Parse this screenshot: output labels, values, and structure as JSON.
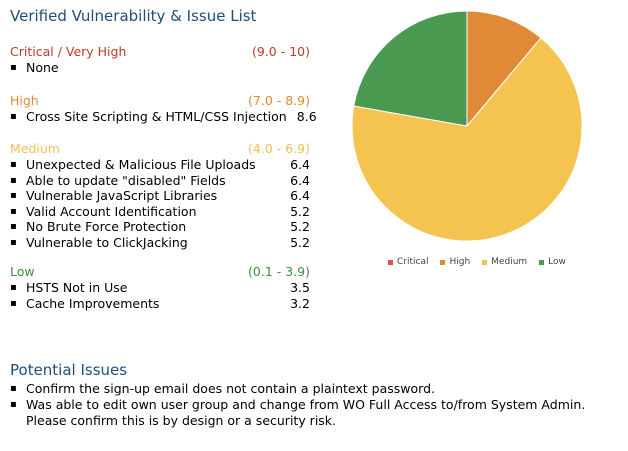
{
  "title": "Verified Vulnerability & Issue List",
  "sections": [
    {
      "label": "Critical / Very High",
      "range": "(9.0 - 10)",
      "color": "#c0392b",
      "items": [
        {
          "name": "None",
          "score": ""
        }
      ]
    },
    {
      "label": "High",
      "range": "(7.0 - 8.9)",
      "color": "#e08a2e",
      "items": [
        {
          "name": "Cross Site Scripting & HTML/CSS Injection",
          "score": "8.6"
        }
      ]
    },
    {
      "label": "Medium",
      "range": "(4.0 - 6.9)",
      "color": "#f2c04f",
      "items": [
        {
          "name": "Unexpected & Malicious File Uploads",
          "score": "6.4"
        },
        {
          "name": "Able to update \"disabled\" Fields",
          "score": "6.4"
        },
        {
          "name": "Vulnerable JavaScript Libraries",
          "score": "6.4"
        },
        {
          "name": "Valid Account Identification",
          "score": "5.2"
        },
        {
          "name": "No Brute Force Protection",
          "score": "5.2"
        },
        {
          "name": "Vulnerable to ClickJacking",
          "score": "5.2"
        }
      ]
    },
    {
      "label": "Low",
      "range": "(0.1 - 3.9)",
      "color": "#3f8f3f",
      "items": [
        {
          "name": "HSTS Not in Use",
          "score": "3.5"
        },
        {
          "name": "Cache Improvements",
          "score": "3.2"
        }
      ]
    }
  ],
  "potential": {
    "title": "Potential Issues",
    "items": [
      "Confirm the sign-up email does not contain a plaintext password.",
      "Was able to edit own user group and change from WO Full Access to/from System Admin. Please confirm this is by design or a security risk."
    ]
  },
  "chart_data": {
    "type": "pie",
    "categories": [
      "Critical",
      "High",
      "Medium",
      "Low"
    ],
    "values": [
      0,
      1,
      6,
      2
    ],
    "colors": [
      "#d9534f",
      "#e08a35",
      "#f5c350",
      "#4a9a52"
    ],
    "legend_position": "bottom"
  }
}
